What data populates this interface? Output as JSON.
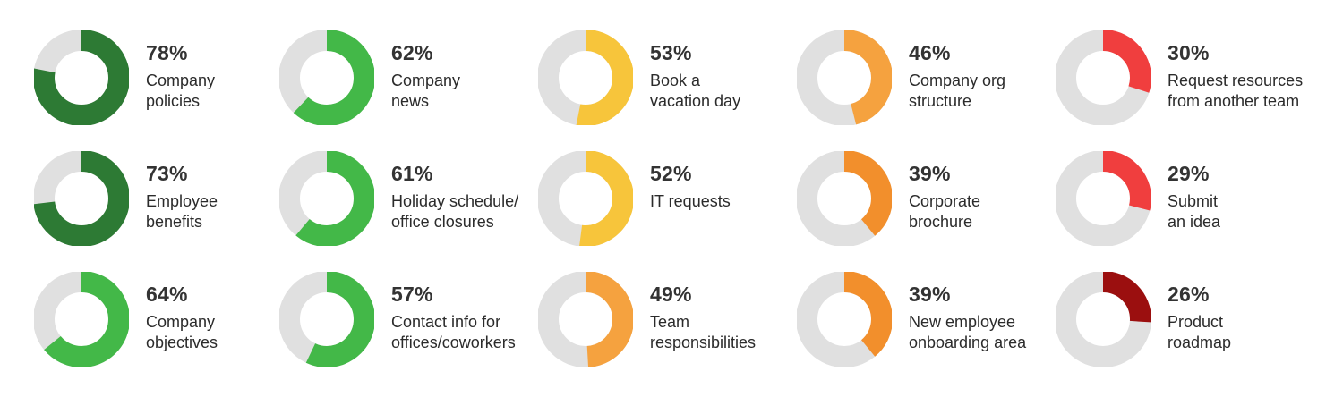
{
  "chart_data": {
    "type": "pie",
    "variant": "donut",
    "grid": false,
    "ring_track_color": "#e0e0e0",
    "items": [
      {
        "value": 78,
        "pct_label": "78%",
        "label_lines": [
          "Company",
          "policies"
        ],
        "color": "#2d7a34"
      },
      {
        "value": 62,
        "pct_label": "62%",
        "label_lines": [
          "Company",
          "news"
        ],
        "color": "#43b848"
      },
      {
        "value": 53,
        "pct_label": "53%",
        "label_lines": [
          "Book a",
          "vacation day"
        ],
        "color": "#f7c53b"
      },
      {
        "value": 46,
        "pct_label": "46%",
        "label_lines": [
          "Company org",
          "structure"
        ],
        "color": "#f5a23f"
      },
      {
        "value": 30,
        "pct_label": "30%",
        "label_lines": [
          "Request resources",
          "from another team"
        ],
        "color": "#f03e3e"
      },
      {
        "value": 73,
        "pct_label": "73%",
        "label_lines": [
          "Employee",
          "benefits"
        ],
        "color": "#2d7a34"
      },
      {
        "value": 61,
        "pct_label": "61%",
        "label_lines": [
          "Holiday schedule/",
          "office closures"
        ],
        "color": "#43b848"
      },
      {
        "value": 52,
        "pct_label": "52%",
        "label_lines": [
          "IT requests"
        ],
        "color": "#f7c53b"
      },
      {
        "value": 39,
        "pct_label": "39%",
        "label_lines": [
          "Corporate",
          "brochure"
        ],
        "color": "#f28f2c"
      },
      {
        "value": 29,
        "pct_label": "29%",
        "label_lines": [
          "Submit",
          "an idea"
        ],
        "color": "#f03e3e"
      },
      {
        "value": 64,
        "pct_label": "64%",
        "label_lines": [
          "Company",
          "objectives"
        ],
        "color": "#43b848"
      },
      {
        "value": 57,
        "pct_label": "57%",
        "label_lines": [
          "Contact info for",
          "offices/coworkers"
        ],
        "color": "#43b848"
      },
      {
        "value": 49,
        "pct_label": "49%",
        "label_lines": [
          "Team",
          "responsibilities"
        ],
        "color": "#f5a23f"
      },
      {
        "value": 39,
        "pct_label": "39%",
        "label_lines": [
          "New employee",
          "onboarding area"
        ],
        "color": "#f28f2c"
      },
      {
        "value": 26,
        "pct_label": "26%",
        "label_lines": [
          "Product",
          "roadmap"
        ],
        "color": "#9b0f0f"
      }
    ]
  }
}
